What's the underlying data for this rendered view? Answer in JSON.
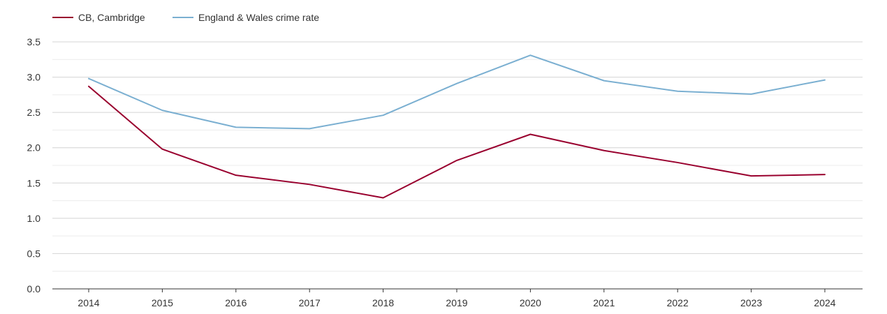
{
  "chart_data": {
    "type": "line",
    "title": "",
    "xlabel": "",
    "ylabel": "",
    "x": [
      "2014",
      "2015",
      "2016",
      "2017",
      "2018",
      "2019",
      "2020",
      "2021",
      "2022",
      "2023",
      "2024"
    ],
    "ylim": [
      0,
      3.5
    ],
    "yticks": [
      "0.0",
      "0.5",
      "1.0",
      "1.5",
      "2.0",
      "2.5",
      "3.0",
      "3.5"
    ],
    "grid": true,
    "legend_position": "top-left",
    "series": [
      {
        "name": "CB, Cambridge",
        "color": "#99002e",
        "values": [
          2.87,
          1.98,
          1.61,
          1.48,
          1.29,
          1.82,
          2.19,
          1.96,
          1.79,
          1.6,
          1.62
        ]
      },
      {
        "name": "England & Wales crime rate",
        "color": "#7aafd1",
        "values": [
          2.98,
          2.53,
          2.29,
          2.27,
          2.46,
          2.91,
          3.31,
          2.95,
          2.8,
          2.76,
          2.96
        ]
      }
    ]
  }
}
